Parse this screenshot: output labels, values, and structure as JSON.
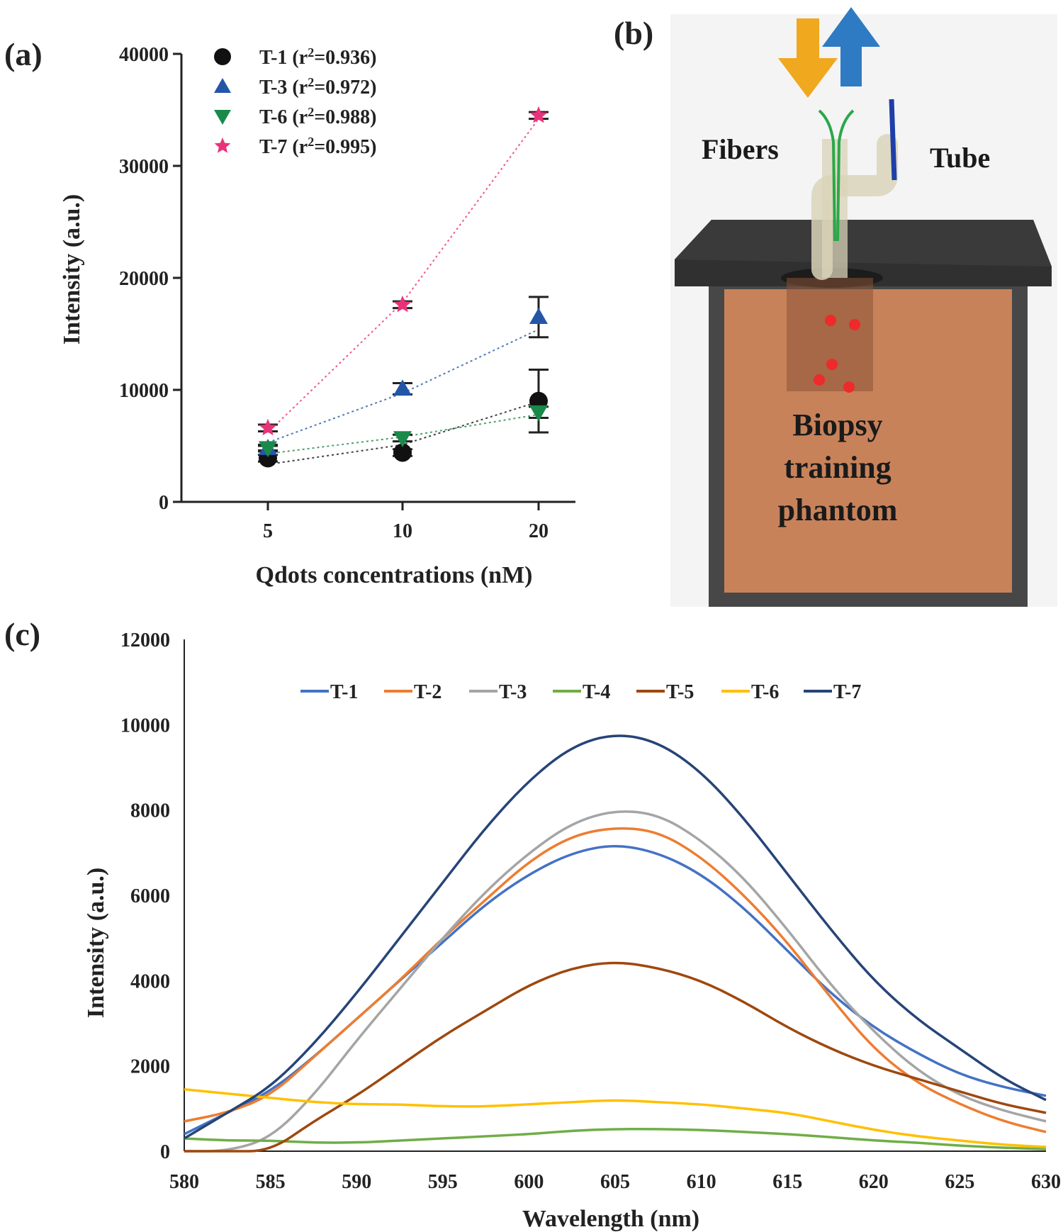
{
  "panels": {
    "a": "(a)",
    "b": "(b)",
    "c": "(c)"
  },
  "chart_data": [
    {
      "id": "a",
      "type": "scatter",
      "title": "",
      "xlabel": "Qdots concentrations (nM)",
      "ylabel": "Intensity (a.u.)",
      "categories": [
        "5",
        "10",
        "20"
      ],
      "ylim": [
        0,
        40000
      ],
      "yticks": [
        0,
        10000,
        20000,
        30000,
        40000
      ],
      "grid": false,
      "legend_position": "top-left",
      "series": [
        {
          "name": "T-1",
          "r2": "0.936",
          "marker": "circle",
          "color": "#111111",
          "values": [
            3900,
            4400,
            9000
          ],
          "errors": [
            300,
            300,
            2800
          ],
          "fit": [
            3350,
            5100,
            8950
          ]
        },
        {
          "name": "T-3",
          "r2": "0.972",
          "marker": "triangle-up",
          "color": "#2456a8",
          "values": [
            4800,
            10100,
            16500
          ],
          "errors": [
            200,
            500,
            1800
          ],
          "fit": [
            5300,
            9700,
            15400
          ]
        },
        {
          "name": "T-6",
          "r2": "0.988",
          "marker": "triangle-down",
          "color": "#1a8a4a",
          "values": [
            4800,
            5700,
            8000
          ],
          "errors": [
            300,
            300,
            500
          ],
          "fit": [
            4300,
            5800,
            7800
          ]
        },
        {
          "name": "T-7",
          "r2": "0.995",
          "marker": "star",
          "color": "#e8337a",
          "values": [
            6600,
            17600,
            34500
          ],
          "errors": [
            300,
            300,
            300
          ],
          "fit": [
            6200,
            17800,
            34200
          ]
        }
      ]
    },
    {
      "id": "c",
      "type": "line",
      "title": "",
      "xlabel": "Wavelength (nm)",
      "ylabel": "Intensity (a.u.)",
      "xlim": [
        580,
        630
      ],
      "ylim": [
        0,
        12000
      ],
      "xticks": [
        580,
        585,
        590,
        595,
        600,
        605,
        610,
        615,
        620,
        625,
        630
      ],
      "yticks": [
        0,
        2000,
        4000,
        6000,
        8000,
        10000,
        12000
      ],
      "grid": false,
      "legend_position": "top-center",
      "x": [
        580,
        582.5,
        585,
        587.5,
        590,
        592.5,
        595,
        597.5,
        600,
        602.5,
        605,
        607.5,
        610,
        612.5,
        615,
        617.5,
        620,
        622.5,
        625,
        627.5,
        630
      ],
      "series": [
        {
          "name": "T-1",
          "color": "#4472c4",
          "values": [
            400,
            900,
            1400,
            2200,
            3100,
            4000,
            4900,
            5800,
            6500,
            7000,
            7200,
            7000,
            6500,
            5700,
            4700,
            3700,
            2900,
            2300,
            1800,
            1500,
            1300
          ]
        },
        {
          "name": "T-2",
          "color": "#ed7d31",
          "values": [
            700,
            900,
            1300,
            2200,
            3100,
            4000,
            5000,
            5900,
            6800,
            7400,
            7600,
            7500,
            6900,
            6000,
            4900,
            3600,
            2400,
            1600,
            1100,
            700,
            450
          ]
        },
        {
          "name": "T-3",
          "color": "#a5a5a5",
          "values": [
            0,
            0,
            300,
            1300,
            2600,
            3800,
            5000,
            6100,
            7000,
            7700,
            8000,
            7900,
            7300,
            6400,
            5200,
            3900,
            2800,
            1900,
            1300,
            950,
            700
          ]
        },
        {
          "name": "T-4",
          "color": "#70ad47",
          "values": [
            300,
            250,
            250,
            200,
            200,
            250,
            300,
            350,
            400,
            480,
            520,
            520,
            500,
            450,
            400,
            330,
            250,
            200,
            130,
            80,
            50
          ]
        },
        {
          "name": "T-5",
          "color": "#9e480e",
          "values": [
            0,
            0,
            0,
            700,
            1300,
            2000,
            2700,
            3300,
            3900,
            4300,
            4450,
            4300,
            4000,
            3500,
            2900,
            2400,
            2000,
            1700,
            1400,
            1100,
            900
          ]
        },
        {
          "name": "T-6",
          "color": "#ffc000",
          "values": [
            1450,
            1350,
            1250,
            1150,
            1100,
            1100,
            1050,
            1050,
            1100,
            1150,
            1200,
            1150,
            1100,
            1000,
            900,
            700,
            500,
            350,
            250,
            150,
            100
          ]
        },
        {
          "name": "T-7",
          "color": "#264478",
          "values": [
            300,
            900,
            1500,
            2500,
            3700,
            5000,
            6300,
            7600,
            8700,
            9500,
            9800,
            9600,
            8900,
            7800,
            6500,
            5200,
            4000,
            3100,
            2400,
            1700,
            1200
          ]
        }
      ]
    }
  ],
  "diagram": {
    "fibers_label": "Fibers",
    "tube_label": "Tube",
    "phantom_label": [
      "Biopsy",
      "training",
      "phantom"
    ],
    "colors": {
      "arrow_down": "#f0a81e",
      "arrow_up": "#2e7bc4",
      "fiber": "#2aa84a",
      "rod": "#1f3fa8",
      "box": "#474747",
      "box_top": "#303030",
      "phantom": "#c8825a",
      "dot": "#ee2a2a",
      "tube": "#d9d3b8"
    }
  }
}
